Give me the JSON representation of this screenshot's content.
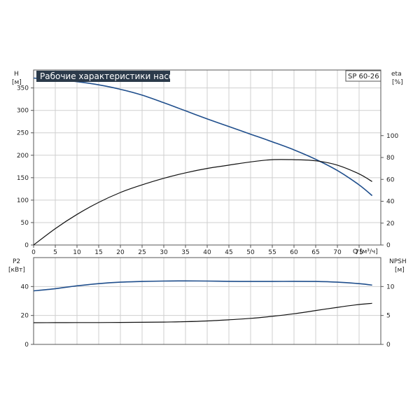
{
  "colors": {
    "grid": "#cfcfcf",
    "frame": "#555555",
    "blue": "#1f4e8c",
    "black": "#111111"
  },
  "chart_data": [
    {
      "type": "line",
      "title": "Рабочие характеристики насоса",
      "model": "SP 60-26",
      "xlabel": "Q [м³/ч]",
      "x_ticks": [
        "0",
        "5",
        "10",
        "15",
        "20",
        "25",
        "30",
        "35",
        "40",
        "45",
        "50",
        "55",
        "60",
        "65",
        "70",
        "75"
      ],
      "xlim": [
        0,
        80
      ],
      "left_axis": {
        "name": "H",
        "unit": "[м]",
        "ylim": [
          0,
          390
        ],
        "ticks": [
          "0",
          "50",
          "100",
          "150",
          "200",
          "250",
          "300",
          "350"
        ]
      },
      "right_axis": {
        "name": "eta",
        "unit": "[%]",
        "ylim": [
          0,
          160
        ],
        "ticks": [
          "0",
          "20",
          "40",
          "60",
          "80",
          "100"
        ]
      },
      "grid": true,
      "series": [
        {
          "axis": "left",
          "color": "blue",
          "x": [
            0,
            5,
            10,
            15,
            20,
            25,
            30,
            35,
            40,
            45,
            50,
            55,
            60,
            65,
            70,
            75,
            78
          ],
          "y": [
            372,
            369,
            364,
            357,
            347,
            334,
            317,
            299,
            281,
            264,
            247,
            230,
            212,
            191,
            166,
            134,
            110
          ]
        },
        {
          "axis": "right",
          "color": "black",
          "x": [
            0,
            5,
            10,
            15,
            20,
            25,
            30,
            35,
            40,
            45,
            50,
            55,
            60,
            65,
            70,
            75,
            78
          ],
          "y": [
            0,
            15,
            28,
            39,
            48,
            55,
            61,
            66,
            70,
            73,
            76,
            78,
            78,
            77,
            73,
            65,
            58
          ]
        }
      ]
    },
    {
      "type": "line",
      "xlim": [
        0,
        80
      ],
      "left_axis": {
        "name": "P2",
        "unit": "[кВт]",
        "ylim": [
          0,
          60
        ],
        "ticks": [
          "0",
          "20",
          "40"
        ]
      },
      "right_axis": {
        "name": "NPSH",
        "unit": "[м]",
        "ylim": [
          0,
          15
        ],
        "ticks": [
          "0",
          "5",
          "10"
        ]
      },
      "grid": true,
      "series": [
        {
          "axis": "left",
          "color": "blue",
          "x": [
            0,
            5,
            10,
            15,
            20,
            25,
            30,
            35,
            40,
            45,
            50,
            55,
            60,
            65,
            70,
            75,
            78
          ],
          "y": [
            37,
            38.5,
            40.5,
            42,
            43,
            43.5,
            43.8,
            43.9,
            43.8,
            43.6,
            43.5,
            43.5,
            43.6,
            43.5,
            43,
            42,
            41
          ]
        },
        {
          "axis": "right",
          "color": "black",
          "x": [
            0,
            5,
            10,
            15,
            20,
            25,
            30,
            35,
            40,
            45,
            50,
            55,
            60,
            65,
            70,
            75,
            78
          ],
          "y": [
            3.75,
            3.76,
            3.77,
            3.78,
            3.8,
            3.82,
            3.86,
            3.93,
            4.05,
            4.25,
            4.5,
            4.85,
            5.3,
            5.85,
            6.4,
            6.9,
            7.1
          ]
        }
      ]
    }
  ]
}
